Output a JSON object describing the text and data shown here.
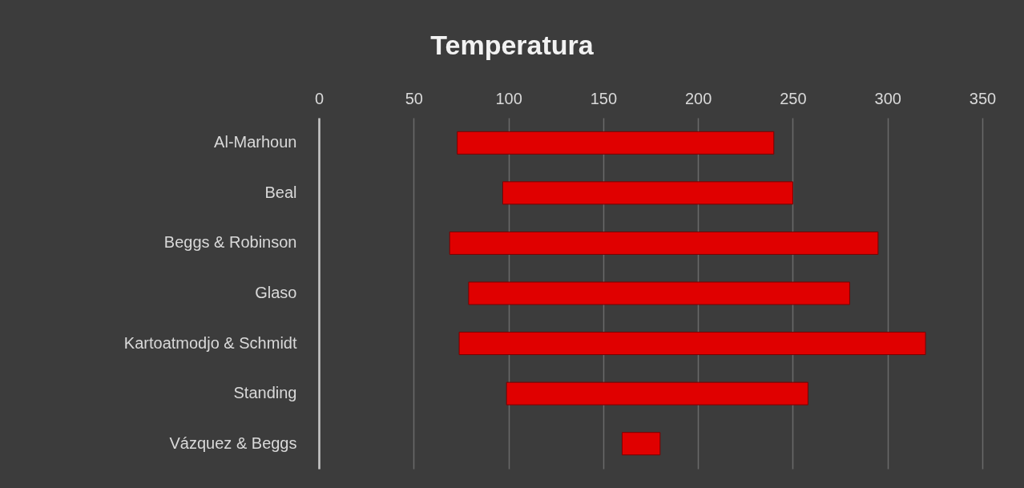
{
  "chart_data": {
    "type": "bar",
    "orientation": "horizontal",
    "title": "Temperatura",
    "categories": [
      "Al-Marhoun",
      "Beal",
      "Beggs & Robinson",
      "Glaso",
      "Kartoatmodjo & Schmidt",
      "Standing",
      "Vázquez & Beggs"
    ],
    "base": [
      73,
      97,
      69,
      79,
      74,
      99,
      160
    ],
    "values": [
      167,
      153,
      226,
      201,
      246,
      159,
      20
    ],
    "color": "#e00000",
    "xlim": [
      0,
      350
    ],
    "xticks": [
      0,
      50,
      100,
      150,
      200,
      250,
      300,
      350
    ],
    "grid": "x"
  }
}
